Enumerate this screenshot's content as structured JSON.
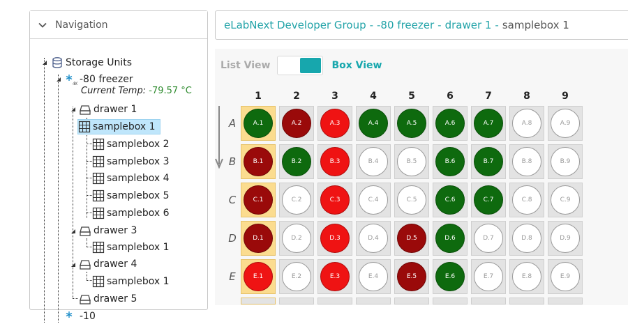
{
  "navigation": {
    "title": "Navigation",
    "tree": {
      "root": "Storage Units",
      "freezer": {
        "label": "-80 freezer",
        "temp_label": "Current Temp:",
        "temp_value": "-79.57 °C"
      },
      "drawer1": "drawer 1",
      "drawer1_boxes": [
        "samplebox 1",
        "samplebox 2",
        "samplebox 3",
        "samplebox 4",
        "samplebox 5",
        "samplebox 6"
      ],
      "drawer3": "drawer 3",
      "drawer3_boxes": [
        "samplebox 1"
      ],
      "drawer4": "drawer 4",
      "drawer4_boxes": [
        "samplebox 1"
      ],
      "drawer5": "drawer 5",
      "partial_item": "-10"
    }
  },
  "breadcrumb": {
    "items": [
      "eLabNext Developer Group",
      "-80 freezer",
      "drawer 1",
      "samplebox 1"
    ],
    "separator": "-"
  },
  "view_toggle": {
    "list_label": "List View",
    "box_label": "Box View",
    "active": "box"
  },
  "colors": {
    "accent": "#17a7ad",
    "link": "#22a3a8",
    "temp": "#2e8b2e",
    "well_green": "#0e6a0e",
    "well_darkred": "#9a0a0a",
    "well_red": "#ef1313",
    "selected_column": "#fbdc8f"
  },
  "icons": {
    "nav_toggle": "chevron-down-icon",
    "storage": "database-icon",
    "freezer": "snowflake-icon",
    "drawer": "drawer-icon",
    "box": "grid-icon",
    "row_order": "arrow-down-icon"
  },
  "grid": {
    "columns": [
      "1",
      "2",
      "3",
      "4",
      "5",
      "6",
      "7",
      "8",
      "9"
    ],
    "rows": [
      {
        "label": "A",
        "cells": [
          {
            "id": "A.1",
            "status": "green"
          },
          {
            "id": "A.2",
            "status": "darkred"
          },
          {
            "id": "A.3",
            "status": "red"
          },
          {
            "id": "A.4",
            "status": "green"
          },
          {
            "id": "A.5",
            "status": "green"
          },
          {
            "id": "A.6",
            "status": "green"
          },
          {
            "id": "A.7",
            "status": "green"
          },
          {
            "id": "A.8",
            "status": "empty"
          },
          {
            "id": "A.9",
            "status": "empty"
          }
        ]
      },
      {
        "label": "B",
        "cells": [
          {
            "id": "B.1",
            "status": "darkred"
          },
          {
            "id": "B.2",
            "status": "green"
          },
          {
            "id": "B.3",
            "status": "red"
          },
          {
            "id": "B.4",
            "status": "empty"
          },
          {
            "id": "B.5",
            "status": "empty"
          },
          {
            "id": "B.6",
            "status": "green"
          },
          {
            "id": "B.7",
            "status": "green"
          },
          {
            "id": "B.8",
            "status": "empty"
          },
          {
            "id": "B.9",
            "status": "empty"
          }
        ]
      },
      {
        "label": "C",
        "cells": [
          {
            "id": "C.1",
            "status": "darkred"
          },
          {
            "id": "C.2",
            "status": "empty"
          },
          {
            "id": "C.3",
            "status": "red"
          },
          {
            "id": "C.4",
            "status": "empty"
          },
          {
            "id": "C.5",
            "status": "empty"
          },
          {
            "id": "C.6",
            "status": "green"
          },
          {
            "id": "C.7",
            "status": "green"
          },
          {
            "id": "C.8",
            "status": "empty"
          },
          {
            "id": "C.9",
            "status": "empty"
          }
        ]
      },
      {
        "label": "D",
        "cells": [
          {
            "id": "D.1",
            "status": "darkred"
          },
          {
            "id": "D.2",
            "status": "empty"
          },
          {
            "id": "D.3",
            "status": "red"
          },
          {
            "id": "D.4",
            "status": "empty"
          },
          {
            "id": "D.5",
            "status": "darkred"
          },
          {
            "id": "D.6",
            "status": "green"
          },
          {
            "id": "D.7",
            "status": "empty"
          },
          {
            "id": "D.8",
            "status": "empty"
          },
          {
            "id": "D.9",
            "status": "empty"
          }
        ]
      },
      {
        "label": "E",
        "cells": [
          {
            "id": "E.1",
            "status": "red"
          },
          {
            "id": "E.2",
            "status": "empty"
          },
          {
            "id": "E.3",
            "status": "red"
          },
          {
            "id": "E.4",
            "status": "empty"
          },
          {
            "id": "E.5",
            "status": "darkred"
          },
          {
            "id": "E.6",
            "status": "green"
          },
          {
            "id": "E.7",
            "status": "empty"
          },
          {
            "id": "E.8",
            "status": "empty"
          },
          {
            "id": "E.9",
            "status": "empty"
          }
        ]
      }
    ],
    "selected_column": "1"
  }
}
